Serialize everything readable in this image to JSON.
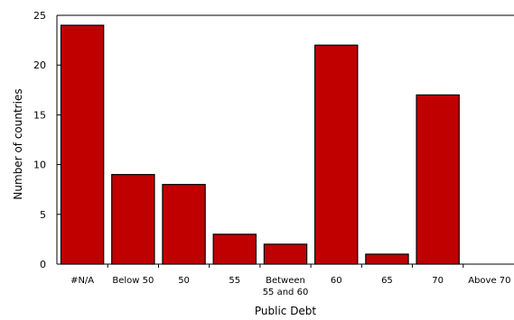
{
  "chart_data": {
    "type": "bar",
    "categories": [
      "#N/A",
      "Below 50",
      "50",
      "55",
      "Between 55 and 60",
      "60",
      "65",
      "70",
      "Above 70"
    ],
    "category_label_lines": [
      [
        "#N/A"
      ],
      [
        "Below 50"
      ],
      [
        "50"
      ],
      [
        "55"
      ],
      [
        "Between",
        "55 and 60"
      ],
      [
        "60"
      ],
      [
        "65"
      ],
      [
        "70"
      ],
      [
        "Above 70"
      ]
    ],
    "values": [
      24,
      9,
      8,
      3,
      2,
      22,
      1,
      17,
      0
    ],
    "xlabel": "Public Debt",
    "ylabel": "Number of countries",
    "ylim": [
      0,
      25
    ],
    "yticks": [
      0,
      5,
      10,
      15,
      20,
      25
    ],
    "grid": false,
    "legend": "none",
    "bar_color": "#C00000",
    "bar_edge_color": "#000000"
  }
}
